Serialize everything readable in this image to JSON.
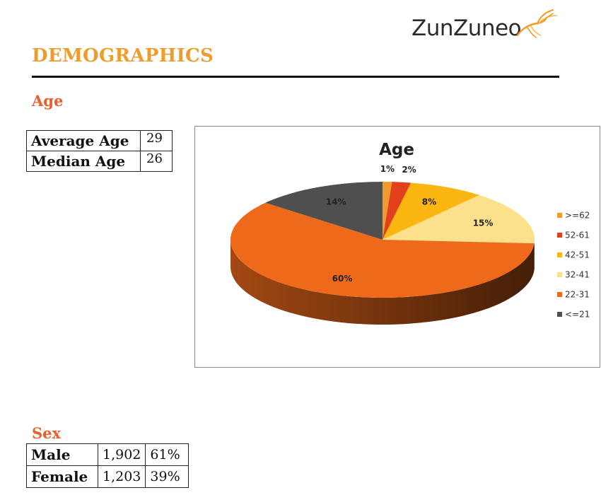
{
  "logo": {
    "text": "ZunZuneo"
  },
  "page": {
    "title": "DEMOGRAPHICS"
  },
  "age": {
    "heading": "Age",
    "stats": [
      {
        "label": "Average Age",
        "value": "29"
      },
      {
        "label": "Median Age",
        "value": "26"
      }
    ]
  },
  "sex": {
    "heading": "Sex",
    "rows": [
      {
        "label": "Male",
        "count": "1,902",
        "percent": "61%"
      },
      {
        "label": "Female",
        "count": "1,203",
        "percent": "39%"
      }
    ]
  },
  "chart_data": {
    "type": "pie",
    "title": "Age",
    "three_d": true,
    "legend_position": "right",
    "categories": [
      ">=62",
      "52-61",
      "42-51",
      "32-41",
      "22-31",
      "<=21"
    ],
    "values": [
      1,
      2,
      8,
      15,
      60,
      14
    ],
    "labels": [
      "1%",
      "2%",
      "8%",
      "15%",
      "60%",
      "14%"
    ],
    "colors": [
      "#f29a2e",
      "#e2401a",
      "#fbb611",
      "#fde08c",
      "#ee6a1a",
      "#4f4f4f"
    ]
  }
}
